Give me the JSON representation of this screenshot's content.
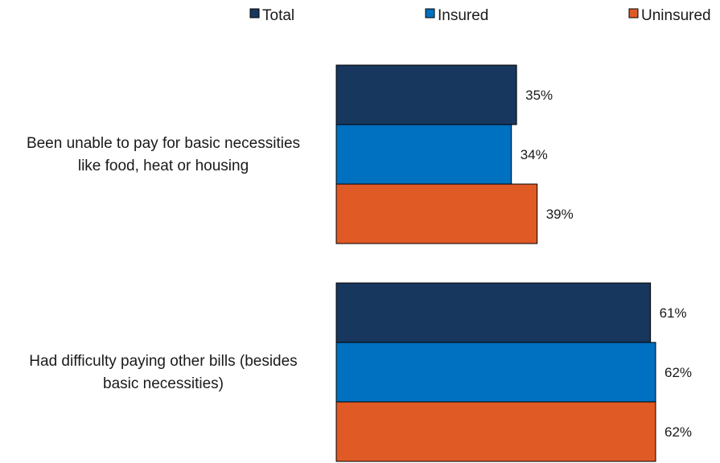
{
  "chart_data": {
    "type": "bar",
    "orientation": "horizontal",
    "categories": [
      [
        "Been unable to pay for basic necessities",
        "like food, heat or housing"
      ],
      [
        "Had difficulty paying other bills (besides",
        "basic necessities)"
      ]
    ],
    "series": [
      {
        "name": "Total",
        "color": "#17375e",
        "values": [
          35,
          61
        ],
        "labels": [
          "35%",
          "61%"
        ]
      },
      {
        "name": "Insured",
        "color": "#0070c0",
        "values": [
          34,
          62
        ],
        "labels": [
          "34%",
          "62%"
        ]
      },
      {
        "name": "Uninsured",
        "color": "#e05a26",
        "values": [
          39,
          62
        ],
        "labels": [
          "39%",
          "62%"
        ]
      }
    ],
    "value_unit": "%",
    "xlim": [
      0,
      62
    ],
    "grid": false,
    "legend_position": "top"
  }
}
